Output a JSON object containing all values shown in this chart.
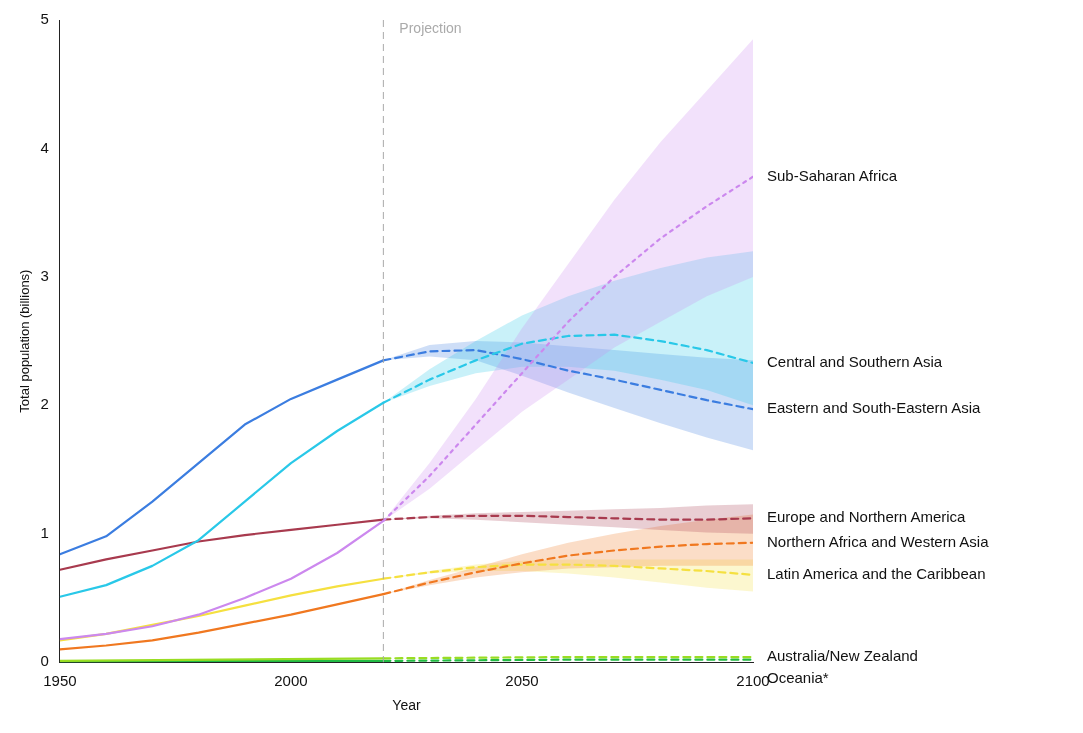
{
  "chart_data": {
    "type": "line",
    "xlabel": "Year",
    "ylabel": "Total population (billions)",
    "xlim": [
      1950,
      2100
    ],
    "xticks": [
      1950,
      2000,
      2050,
      2100
    ],
    "ylim": [
      0,
      5
    ],
    "yticks": [
      0,
      1,
      2,
      3,
      4,
      5
    ],
    "grid": false,
    "legend": false,
    "marker": "none",
    "ref_lines": [
      {
        "axis": "x",
        "value": 2020,
        "label": "Projection",
        "color": "#aaaaaa",
        "line_style": "dashed"
      }
    ],
    "series": [
      {
        "color": "#cc88ee",
        "x": [
          1950,
          1960,
          1970,
          1980,
          1990,
          2000,
          2010,
          2020
        ],
        "values": [
          0.18,
          0.22,
          0.28,
          0.37,
          0.5,
          0.65,
          0.85,
          1.1
        ],
        "line_style": "solid"
      },
      {
        "name": "Sub-Saharan Africa",
        "color": "#cc88ee",
        "x": [
          2020,
          2030,
          2040,
          2050,
          2060,
          2070,
          2080,
          2090,
          2100
        ],
        "values": [
          1.1,
          1.45,
          1.85,
          2.25,
          2.65,
          3.0,
          3.3,
          3.55,
          3.78
        ],
        "lower": [
          1.1,
          1.35,
          1.65,
          1.95,
          2.2,
          2.45,
          2.65,
          2.85,
          3.0
        ],
        "upper": [
          1.1,
          1.55,
          2.05,
          2.6,
          3.1,
          3.6,
          4.05,
          4.45,
          4.85
        ],
        "line_style": "dotted"
      },
      {
        "color": "#29c8e8",
        "x": [
          1950,
          1960,
          1970,
          1980,
          1990,
          2000,
          2010,
          2020
        ],
        "values": [
          0.51,
          0.6,
          0.75,
          0.95,
          1.25,
          1.55,
          1.8,
          2.02
        ],
        "line_style": "solid"
      },
      {
        "name": "Central and Southern Asia",
        "color": "#29c8e8",
        "x": [
          2020,
          2030,
          2040,
          2050,
          2060,
          2070,
          2080,
          2090,
          2100
        ],
        "values": [
          2.02,
          2.2,
          2.35,
          2.48,
          2.54,
          2.55,
          2.5,
          2.43,
          2.33
        ],
        "lower": [
          2.02,
          2.15,
          2.25,
          2.3,
          2.3,
          2.27,
          2.2,
          2.12,
          2.0
        ],
        "upper": [
          2.02,
          2.28,
          2.5,
          2.7,
          2.85,
          2.97,
          3.07,
          3.15,
          3.2
        ],
        "line_style": "dashed"
      },
      {
        "color": "#3b7de0",
        "x": [
          1950,
          1960,
          1970,
          1980,
          1990,
          2000,
          2010,
          2020
        ],
        "values": [
          0.84,
          0.98,
          1.25,
          1.55,
          1.85,
          2.05,
          2.2,
          2.35
        ],
        "line_style": "solid"
      },
      {
        "name": "Eastern and South-Eastern Asia",
        "color": "#3b7de0",
        "x": [
          2020,
          2030,
          2040,
          2050,
          2060,
          2070,
          2080,
          2090,
          2100
        ],
        "values": [
          2.35,
          2.42,
          2.43,
          2.36,
          2.27,
          2.2,
          2.12,
          2.04,
          1.97
        ],
        "lower": [
          2.35,
          2.38,
          2.35,
          2.23,
          2.1,
          1.98,
          1.86,
          1.75,
          1.65
        ],
        "upper": [
          2.35,
          2.47,
          2.5,
          2.49,
          2.46,
          2.43,
          2.4,
          2.37,
          2.35
        ],
        "line_style": "dashed"
      },
      {
        "color": "#a83a4e",
        "x": [
          1950,
          1960,
          1970,
          1980,
          1990,
          2000,
          2010,
          2020
        ],
        "values": [
          0.72,
          0.8,
          0.87,
          0.94,
          0.99,
          1.03,
          1.07,
          1.11
        ],
        "line_style": "solid"
      },
      {
        "name": "Europe and Northern America",
        "color": "#a83a4e",
        "x": [
          2020,
          2030,
          2040,
          2050,
          2060,
          2070,
          2080,
          2090,
          2100
        ],
        "values": [
          1.11,
          1.13,
          1.14,
          1.14,
          1.13,
          1.12,
          1.11,
          1.11,
          1.12
        ],
        "lower": [
          1.11,
          1.12,
          1.11,
          1.09,
          1.07,
          1.05,
          1.03,
          1.01,
          1.0
        ],
        "upper": [
          1.11,
          1.14,
          1.16,
          1.17,
          1.18,
          1.19,
          1.2,
          1.22,
          1.23
        ],
        "line_style": "dashed"
      },
      {
        "color": "#f07820",
        "x": [
          1950,
          1960,
          1970,
          1980,
          1990,
          2000,
          2010,
          2020
        ],
        "values": [
          0.1,
          0.13,
          0.17,
          0.23,
          0.3,
          0.37,
          0.45,
          0.53
        ],
        "line_style": "solid"
      },
      {
        "name": "Northern Africa and Western Asia",
        "color": "#f07820",
        "x": [
          2020,
          2030,
          2040,
          2050,
          2060,
          2070,
          2080,
          2090,
          2100
        ],
        "values": [
          0.53,
          0.62,
          0.7,
          0.77,
          0.83,
          0.87,
          0.9,
          0.92,
          0.93
        ],
        "lower": [
          0.53,
          0.6,
          0.66,
          0.7,
          0.73,
          0.74,
          0.75,
          0.75,
          0.75
        ],
        "upper": [
          0.53,
          0.64,
          0.74,
          0.84,
          0.93,
          1.0,
          1.06,
          1.11,
          1.15
        ],
        "line_style": "dashed"
      },
      {
        "color": "#f5e040",
        "x": [
          1950,
          1960,
          1970,
          1980,
          1990,
          2000,
          2010,
          2020
        ],
        "values": [
          0.17,
          0.22,
          0.29,
          0.36,
          0.44,
          0.52,
          0.59,
          0.65
        ],
        "line_style": "solid"
      },
      {
        "name": "Latin America and the Caribbean",
        "color": "#f5e040",
        "x": [
          2020,
          2030,
          2040,
          2050,
          2060,
          2070,
          2080,
          2090,
          2100
        ],
        "values": [
          0.65,
          0.7,
          0.74,
          0.76,
          0.76,
          0.75,
          0.73,
          0.71,
          0.68
        ],
        "lower": [
          0.65,
          0.69,
          0.71,
          0.71,
          0.69,
          0.66,
          0.62,
          0.58,
          0.55
        ],
        "upper": [
          0.65,
          0.71,
          0.76,
          0.79,
          0.8,
          0.8,
          0.8,
          0.8,
          0.8
        ],
        "line_style": "dashed"
      },
      {
        "color": "#99dd22",
        "x": [
          1950,
          1985,
          2020
        ],
        "values": [
          0.01,
          0.02,
          0.03
        ],
        "line_style": "solid"
      },
      {
        "name": "Australia/New Zealand",
        "color": "#99dd22",
        "x": [
          2020,
          2060,
          2100
        ],
        "values": [
          0.03,
          0.04,
          0.04
        ],
        "line_style": "dashed"
      },
      {
        "color": "#22bb44",
        "x": [
          1950,
          1985,
          2020
        ],
        "values": [
          0.0,
          0.01,
          0.01
        ],
        "line_style": "solid"
      },
      {
        "name": "Oceania*",
        "color": "#22bb44",
        "x": [
          2020,
          2060,
          2100
        ],
        "values": [
          0.01,
          0.02,
          0.02
        ],
        "line_style": "dashed"
      }
    ]
  }
}
